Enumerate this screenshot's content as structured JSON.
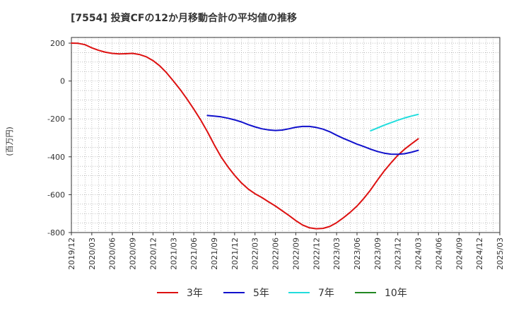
{
  "chart_data": {
    "type": "line",
    "title": "[7554]  投資CFの12か月移動合計の平均値の推移",
    "ylabel": "(百万円)",
    "xlabel": "",
    "ylim": [
      -800,
      230
    ],
    "yticks": [
      200,
      0,
      -200,
      -400,
      -600,
      -800
    ],
    "xticks": [
      "2019/12",
      "2020/03",
      "2020/06",
      "2020/09",
      "2020/12",
      "2021/03",
      "2021/06",
      "2021/09",
      "2021/12",
      "2022/03",
      "2022/06",
      "2022/09",
      "2022/12",
      "2023/03",
      "2023/06",
      "2023/09",
      "2023/12",
      "2024/03",
      "2024/06",
      "2024/09",
      "2024/12",
      "2025/03"
    ],
    "grid": true,
    "legend_position": "bottom",
    "series": [
      {
        "name": "3年",
        "color": "#dd1111",
        "points": [
          [
            "2019/12",
            200
          ],
          [
            "2020/01",
            199
          ],
          [
            "2020/02",
            192
          ],
          [
            "2020/03",
            175
          ],
          [
            "2020/04",
            162
          ],
          [
            "2020/05",
            152
          ],
          [
            "2020/06",
            146
          ],
          [
            "2020/07",
            143
          ],
          [
            "2020/08",
            144
          ],
          [
            "2020/09",
            146
          ],
          [
            "2020/10",
            140
          ],
          [
            "2020/11",
            128
          ],
          [
            "2020/12",
            108
          ],
          [
            "2021/01",
            80
          ],
          [
            "2021/02",
            43
          ],
          [
            "2021/03",
            0
          ],
          [
            "2021/04",
            -45
          ],
          [
            "2021/05",
            -95
          ],
          [
            "2021/06",
            -148
          ],
          [
            "2021/07",
            -205
          ],
          [
            "2021/08",
            -268
          ],
          [
            "2021/09",
            -336
          ],
          [
            "2021/10",
            -400
          ],
          [
            "2021/11",
            -452
          ],
          [
            "2021/12",
            -498
          ],
          [
            "2022/01",
            -538
          ],
          [
            "2022/02",
            -570
          ],
          [
            "2022/03",
            -595
          ],
          [
            "2022/04",
            -615
          ],
          [
            "2022/05",
            -638
          ],
          [
            "2022/06",
            -660
          ],
          [
            "2022/07",
            -685
          ],
          [
            "2022/08",
            -710
          ],
          [
            "2022/09",
            -737
          ],
          [
            "2022/10",
            -760
          ],
          [
            "2022/11",
            -775
          ],
          [
            "2022/12",
            -780
          ],
          [
            "2023/01",
            -778
          ],
          [
            "2023/02",
            -768
          ],
          [
            "2023/03",
            -748
          ],
          [
            "2023/04",
            -722
          ],
          [
            "2023/05",
            -693
          ],
          [
            "2023/06",
            -660
          ],
          [
            "2023/07",
            -620
          ],
          [
            "2023/08",
            -575
          ],
          [
            "2023/09",
            -523
          ],
          [
            "2023/10",
            -475
          ],
          [
            "2023/11",
            -432
          ],
          [
            "2023/12",
            -392
          ],
          [
            "2024/01",
            -360
          ],
          [
            "2024/02",
            -332
          ],
          [
            "2024/03",
            -305
          ]
        ]
      },
      {
        "name": "5年",
        "color": "#1111cc",
        "points": [
          [
            "2021/08",
            -182
          ],
          [
            "2021/09",
            -185
          ],
          [
            "2021/10",
            -189
          ],
          [
            "2021/11",
            -196
          ],
          [
            "2021/12",
            -205
          ],
          [
            "2022/01",
            -216
          ],
          [
            "2022/02",
            -230
          ],
          [
            "2022/03",
            -242
          ],
          [
            "2022/04",
            -252
          ],
          [
            "2022/05",
            -258
          ],
          [
            "2022/06",
            -261
          ],
          [
            "2022/07",
            -259
          ],
          [
            "2022/08",
            -252
          ],
          [
            "2022/09",
            -244
          ],
          [
            "2022/10",
            -240
          ],
          [
            "2022/11",
            -240
          ],
          [
            "2022/12",
            -245
          ],
          [
            "2023/01",
            -254
          ],
          [
            "2023/02",
            -268
          ],
          [
            "2023/03",
            -286
          ],
          [
            "2023/04",
            -303
          ],
          [
            "2023/05",
            -318
          ],
          [
            "2023/06",
            -333
          ],
          [
            "2023/07",
            -346
          ],
          [
            "2023/08",
            -360
          ],
          [
            "2023/09",
            -372
          ],
          [
            "2023/10",
            -381
          ],
          [
            "2023/11",
            -386
          ],
          [
            "2023/12",
            -387
          ],
          [
            "2024/01",
            -384
          ],
          [
            "2024/02",
            -376
          ],
          [
            "2024/03",
            -366
          ]
        ]
      },
      {
        "name": "7年",
        "color": "#22dddd",
        "points": [
          [
            "2023/08",
            -263
          ],
          [
            "2023/09",
            -248
          ],
          [
            "2023/10",
            -233
          ],
          [
            "2023/11",
            -220
          ],
          [
            "2023/12",
            -207
          ],
          [
            "2024/01",
            -195
          ],
          [
            "2024/02",
            -185
          ],
          [
            "2024/03",
            -176
          ]
        ]
      },
      {
        "name": "10年",
        "color": "#228822",
        "points": []
      }
    ]
  }
}
